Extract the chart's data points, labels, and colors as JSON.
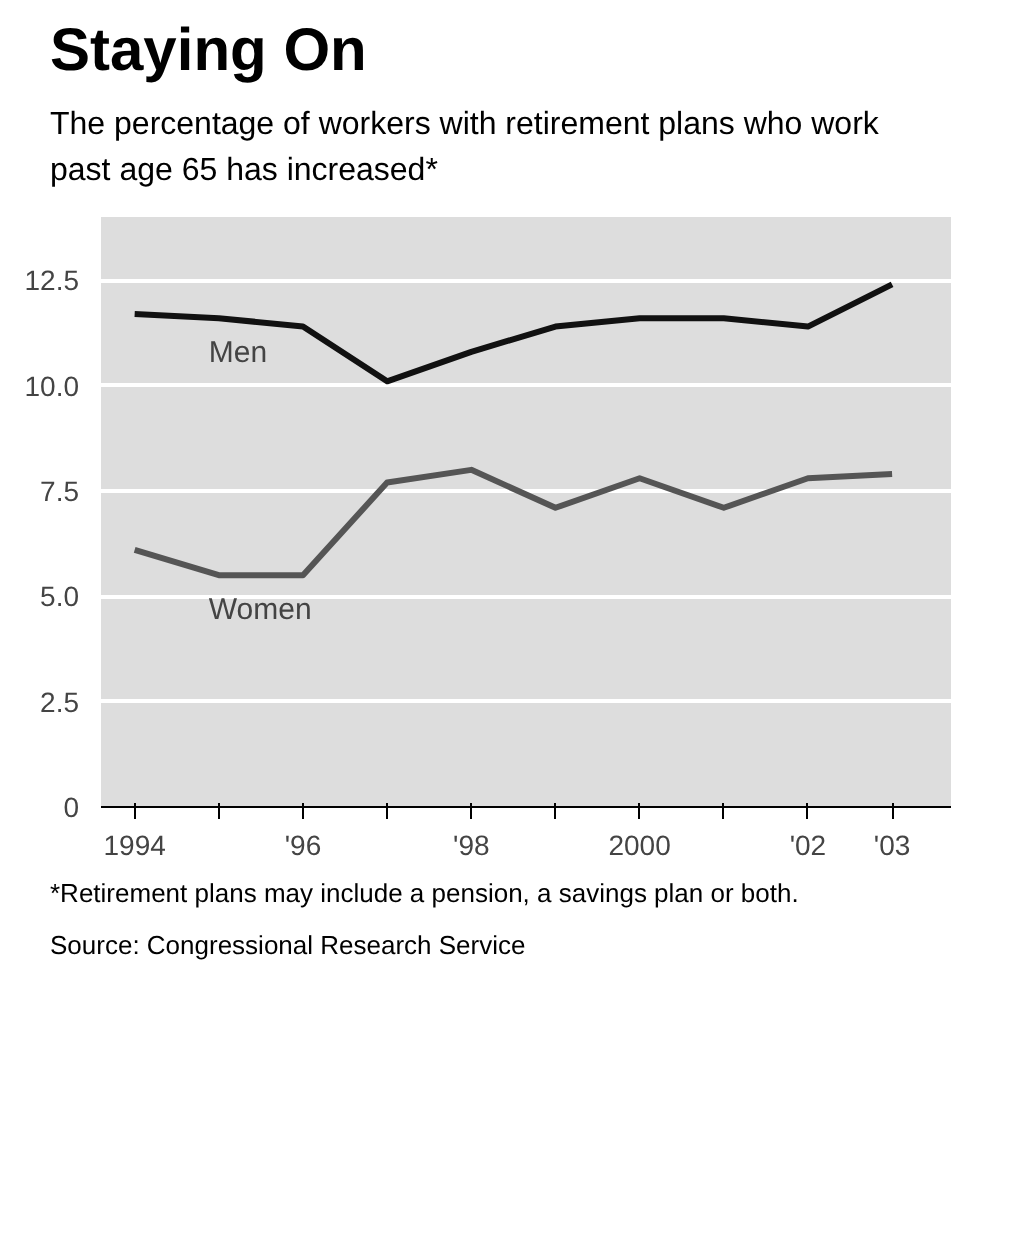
{
  "chart_data": {
    "type": "line",
    "title": "Staying On",
    "subtitle": "The percentage of workers with retirement plans who work past age 65 has increased*",
    "x": [
      1994,
      1995,
      1996,
      1997,
      1998,
      1999,
      2000,
      2001,
      2002,
      2003
    ],
    "series": [
      {
        "name": "Men",
        "color": "#111111",
        "values": [
          11.7,
          11.6,
          11.4,
          10.1,
          10.8,
          11.4,
          11.6,
          11.6,
          11.4,
          12.4
        ]
      },
      {
        "name": "Women",
        "color": "#555555",
        "values": [
          6.1,
          5.5,
          5.5,
          7.7,
          8.0,
          7.1,
          7.8,
          7.1,
          7.8,
          7.9
        ]
      }
    ],
    "xlim": [
      1993.6,
      2003.7
    ],
    "ylim": [
      0,
      14
    ],
    "xticks": [
      1994,
      {
        "value": 1995,
        "label": null
      },
      {
        "value": 1996,
        "label": "'96"
      },
      {
        "value": 1997,
        "label": null
      },
      {
        "value": 1998,
        "label": "'98"
      },
      {
        "value": 1999,
        "label": null
      },
      2000,
      {
        "value": 2001,
        "label": null
      },
      {
        "value": 2002,
        "label": "'02"
      },
      {
        "value": 2003,
        "label": "'03"
      }
    ],
    "yticks": [
      0,
      2.5,
      {
        "value": 5,
        "label": "5.0"
      },
      7.5,
      {
        "value": 10,
        "label": "10.0"
      },
      12.5
    ],
    "grid": "y",
    "marker": "none",
    "line_style": "solid",
    "annotations": [
      "*Retirement plans may include a pension, a savings plan or both.",
      "Source: Congressional Research Service"
    ]
  }
}
